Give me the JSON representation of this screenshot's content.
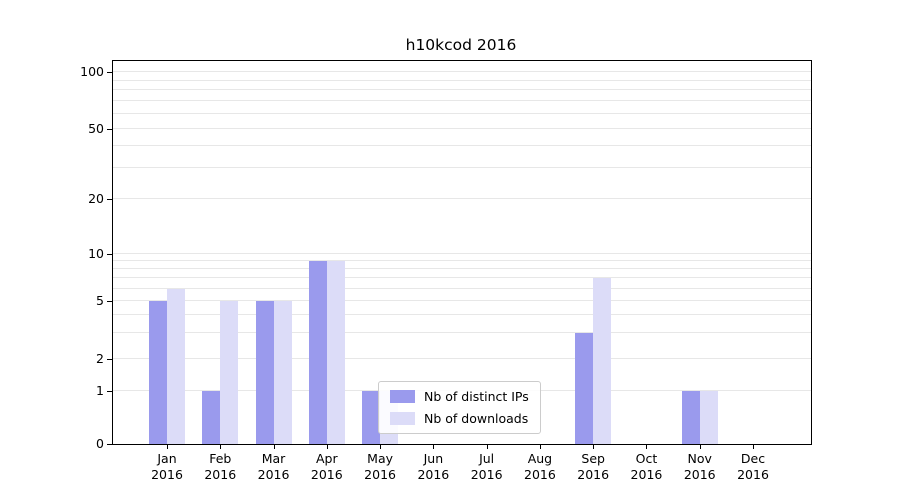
{
  "title": "h10kcod 2016",
  "colors": {
    "distinct_ips_bar": "#9a9aed",
    "downloads_bar": "#dcdcf8",
    "gridline": "#e7e7e7",
    "axis": "#000000",
    "legend_border": "#cccccc"
  },
  "chart_data": {
    "type": "bar",
    "title": "h10kcod 2016",
    "xlabel": "",
    "ylabel": "",
    "y_scale": "log-with-zero",
    "y_ticks": [
      0,
      1,
      2,
      5,
      10,
      20,
      50,
      100
    ],
    "grid": true,
    "legend_position": "inside-bottom-center",
    "categories": [
      "Jan 2016",
      "Feb 2016",
      "Mar 2016",
      "Apr 2016",
      "May 2016",
      "Jun 2016",
      "Jul 2016",
      "Aug 2016",
      "Sep 2016",
      "Oct 2016",
      "Nov 2016",
      "Dec 2016"
    ],
    "series": [
      {
        "name": "Nb of distinct IPs",
        "color": "#9a9aed",
        "values": [
          5,
          1,
          5,
          9,
          1,
          0,
          0,
          0,
          3,
          0,
          1,
          0
        ]
      },
      {
        "name": "Nb of downloads",
        "color": "#dcdcf8",
        "values": [
          6,
          5,
          5,
          9,
          1,
          0,
          0,
          0,
          7,
          0,
          1,
          0
        ]
      }
    ]
  }
}
